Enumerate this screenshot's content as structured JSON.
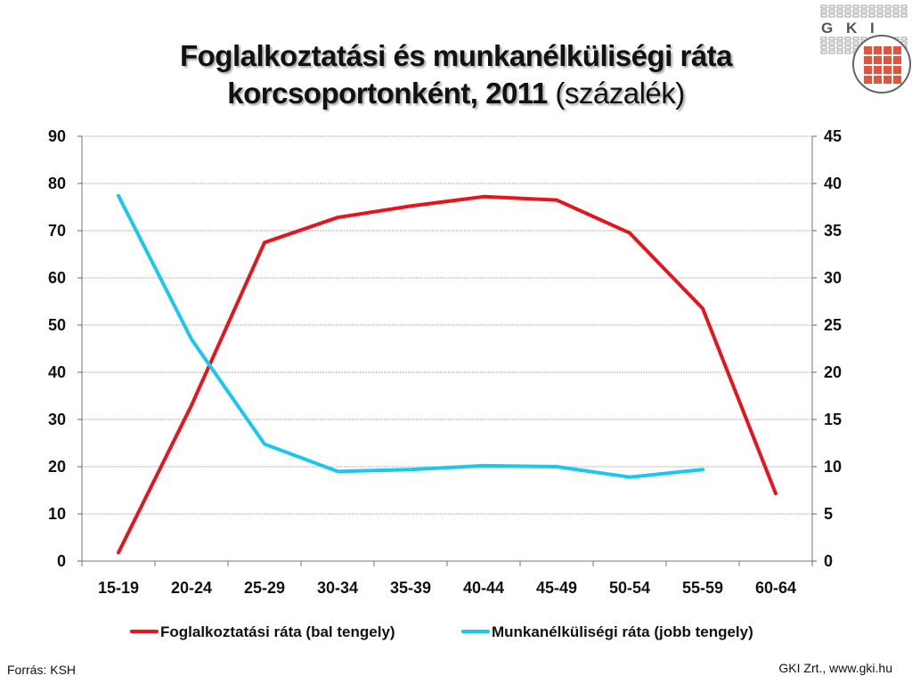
{
  "header": {
    "title_line1": "Foglalkoztatási és munkanélküliségi ráta",
    "title_line2_main": "korcsoportonként,  2011 ",
    "title_line2_unit": "(százalék)"
  },
  "logo": {
    "text": "G K I"
  },
  "footer": {
    "source": "Forrás: KSH",
    "credit": "GKI Zrt., www.gki.hu"
  },
  "colors": {
    "employment": "#e8141b",
    "unemployment": "#19c8f0",
    "grid": "#b0b0b0",
    "logo_red": "#e4533c"
  },
  "chart_data": {
    "type": "line",
    "title": "Foglalkoztatási és munkanélküliségi ráta korcsoportonként, 2011 (százalék)",
    "categories": [
      "15-19",
      "20-24",
      "25-29",
      "30-34",
      "35-39",
      "40-44",
      "45-49",
      "50-54",
      "55-59",
      "60-64"
    ],
    "y_left": {
      "min": 0,
      "max": 90,
      "ticks": [
        "0",
        "10",
        "20",
        "30",
        "40",
        "50",
        "60",
        "70",
        "80",
        "90"
      ]
    },
    "y_right": {
      "min": 0,
      "max": 45,
      "ticks": [
        "0",
        "5",
        "10",
        "15",
        "20",
        "25",
        "30",
        "35",
        "40",
        "45"
      ]
    },
    "grid": true,
    "legend_position": "bottom",
    "series": [
      {
        "name": "Foglalkoztatási ráta (bal tengely)",
        "axis": "left",
        "color": "#e8141b",
        "values": [
          1.8,
          33.0,
          67.5,
          72.8,
          75.2,
          77.2,
          76.5,
          69.5,
          53.5,
          14.3
        ]
      },
      {
        "name": "Munkanélküliségi ráta (jobb tengely)",
        "axis": "right",
        "color": "#19c8f0",
        "values": [
          38.7,
          23.5,
          12.4,
          9.5,
          9.7,
          10.1,
          10.0,
          8.9,
          9.7,
          null
        ]
      }
    ]
  }
}
